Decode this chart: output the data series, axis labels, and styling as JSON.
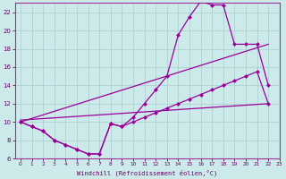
{
  "xlabel": "Windchill (Refroidissement éolien,°C)",
  "bg_color": "#cceaea",
  "grid_color": "#aacccc",
  "line_color": "#990099",
  "xlim": [
    -0.5,
    23
  ],
  "ylim": [
    6,
    23
  ],
  "xticks": [
    0,
    1,
    2,
    3,
    4,
    5,
    6,
    7,
    8,
    9,
    10,
    11,
    12,
    13,
    14,
    15,
    16,
    17,
    18,
    19,
    20,
    21,
    22,
    23
  ],
  "yticks": [
    6,
    8,
    10,
    12,
    14,
    16,
    18,
    20,
    22
  ],
  "curve1_x": [
    0,
    1,
    2,
    3,
    4,
    5,
    6,
    7,
    8,
    9,
    10,
    11,
    12,
    13,
    14,
    15,
    16,
    17,
    18,
    19,
    20,
    21,
    22
  ],
  "curve1_y": [
    10,
    9.5,
    9.0,
    8.0,
    7.5,
    7.0,
    6.5,
    6.5,
    9.8,
    9.5,
    10.0,
    10.5,
    11.0,
    11.5,
    12.0,
    12.5,
    13.0,
    13.5,
    14.0,
    14.5,
    15.0,
    15.5,
    12.0
  ],
  "curve2_x": [
    0,
    1,
    2,
    3,
    4,
    5,
    6,
    7,
    8,
    9,
    10,
    11,
    12,
    13,
    14,
    15,
    16,
    17,
    18,
    19,
    20,
    21,
    22
  ],
  "curve2_y": [
    10,
    9.5,
    9.0,
    8.0,
    7.5,
    7.0,
    6.5,
    6.5,
    9.8,
    9.5,
    10.5,
    12.0,
    13.5,
    15.0,
    19.5,
    21.5,
    23.2,
    22.8,
    22.8,
    18.5,
    18.5,
    18.5,
    14.0
  ],
  "line1_x": [
    0,
    22
  ],
  "line1_y": [
    10.0,
    18.5
  ],
  "line2_x": [
    0,
    22
  ],
  "line2_y": [
    10.2,
    12.0
  ]
}
